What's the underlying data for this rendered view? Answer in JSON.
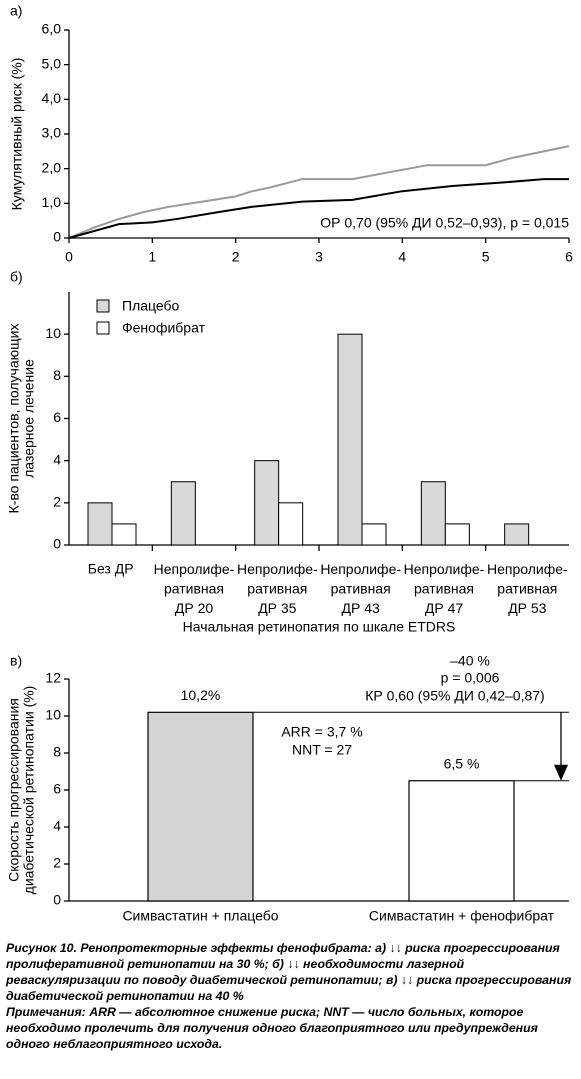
{
  "chart_data": [
    {
      "type": "line",
      "label": "а)",
      "y_label": "Кумулятивный риск (%)",
      "annotation": "ОР 0,70 (95% ДИ 0,52–0,93), p = 0,015",
      "xlim": [
        0,
        6
      ],
      "xticks": [
        0,
        1,
        2,
        3,
        4,
        5,
        6
      ],
      "ylim": [
        0,
        6
      ],
      "yticks": [
        0,
        {
          "value": 1,
          "label": "1,0"
        },
        {
          "value": 2,
          "label": "2,0"
        },
        {
          "value": 3,
          "label": "3,0"
        },
        {
          "value": 4,
          "label": "4,0"
        },
        {
          "value": 5,
          "label": "5,0"
        },
        {
          "value": 6,
          "label": "6,0"
        }
      ],
      "series": [
        {
          "color": "#999999",
          "x": [
            0,
            0.3,
            0.6,
            0.9,
            1.2,
            1.6,
            2.0,
            2.2,
            2.4,
            2.8,
            3.4,
            4.3,
            5.0,
            5.3,
            6.0
          ],
          "values": [
            0,
            0.3,
            0.55,
            0.75,
            0.9,
            1.05,
            1.2,
            1.35,
            1.45,
            1.7,
            1.7,
            2.1,
            2.1,
            2.3,
            2.65
          ]
        },
        {
          "color": "#000000",
          "x": [
            0,
            0.6,
            1.0,
            1.3,
            1.8,
            2.2,
            2.8,
            3.4,
            4.0,
            4.6,
            5.2,
            5.7,
            6.0
          ],
          "values": [
            0,
            0.4,
            0.45,
            0.55,
            0.75,
            0.9,
            1.05,
            1.1,
            1.35,
            1.5,
            1.6,
            1.7,
            1.7
          ]
        }
      ]
    },
    {
      "type": "grouped_bar",
      "label": "б)",
      "y_label": "К-во пациентов, получающих\nлазерное лечение",
      "x_label": "Начальная ретинопатия по шкале ETDRS",
      "categories": [
        "Без ДР",
        "Непролифе-\nративная\nДР 20",
        "Непролифе-\nративная\nДР 35",
        "Непролифе-\nративная\nДР 43",
        "Непролифе-\nративная\nДР 47",
        "Непролифе-\nративная\nДР 53"
      ],
      "ylim": [
        0,
        12
      ],
      "yticks": [
        0,
        2,
        4,
        6,
        8,
        10
      ],
      "series": [
        {
          "name": "Плацебо",
          "color": "#d9d9d9",
          "values": [
            2,
            3,
            4,
            10,
            3,
            1
          ]
        },
        {
          "name": "Фенофибрат",
          "color": "#ffffff",
          "values": [
            1,
            0,
            2,
            1,
            1,
            0
          ]
        }
      ]
    },
    {
      "type": "bar",
      "label": "в)",
      "y_label": "Скорость прогрессирования\nдиабетической ретинопатии (%)",
      "categories": [
        "Симвастатин + плацебо",
        "Симвастатин + фенофибрат"
      ],
      "values": [
        10.2,
        6.5
      ],
      "value_labels": [
        "10,2%",
        "6,5 %"
      ],
      "colors": [
        "#d4d4d4",
        "#ffffff"
      ],
      "ylim": [
        0,
        12
      ],
      "yticks": [
        0,
        2,
        4,
        6,
        8,
        10,
        12
      ],
      "annotations": [
        "–40 %",
        "p = 0,006",
        "КР 0,60 (95% ДИ 0,42–0,87)",
        "ARR = 3,7 %",
        "NNT = 27"
      ]
    }
  ],
  "caption": {
    "text": "Рисунок 10. Ренопротекторные эффекты фенофибрата: а) ↓↓ риска прогрессирования пролиферативной ретинопатии на 30 %; б) ↓↓ необходимости лазерной реваскуляризации по поводу диабетической ретинопатии; в) ↓↓ риска прогрессирования диабетической ретинопатии на 40 %",
    "notes": "Примечания: ARR — абсолютное снижение риска; NNT — число больных, которое необходимо пролечить для получения одного благоприятного или предупреждения одного неблагоприятного исхода."
  }
}
